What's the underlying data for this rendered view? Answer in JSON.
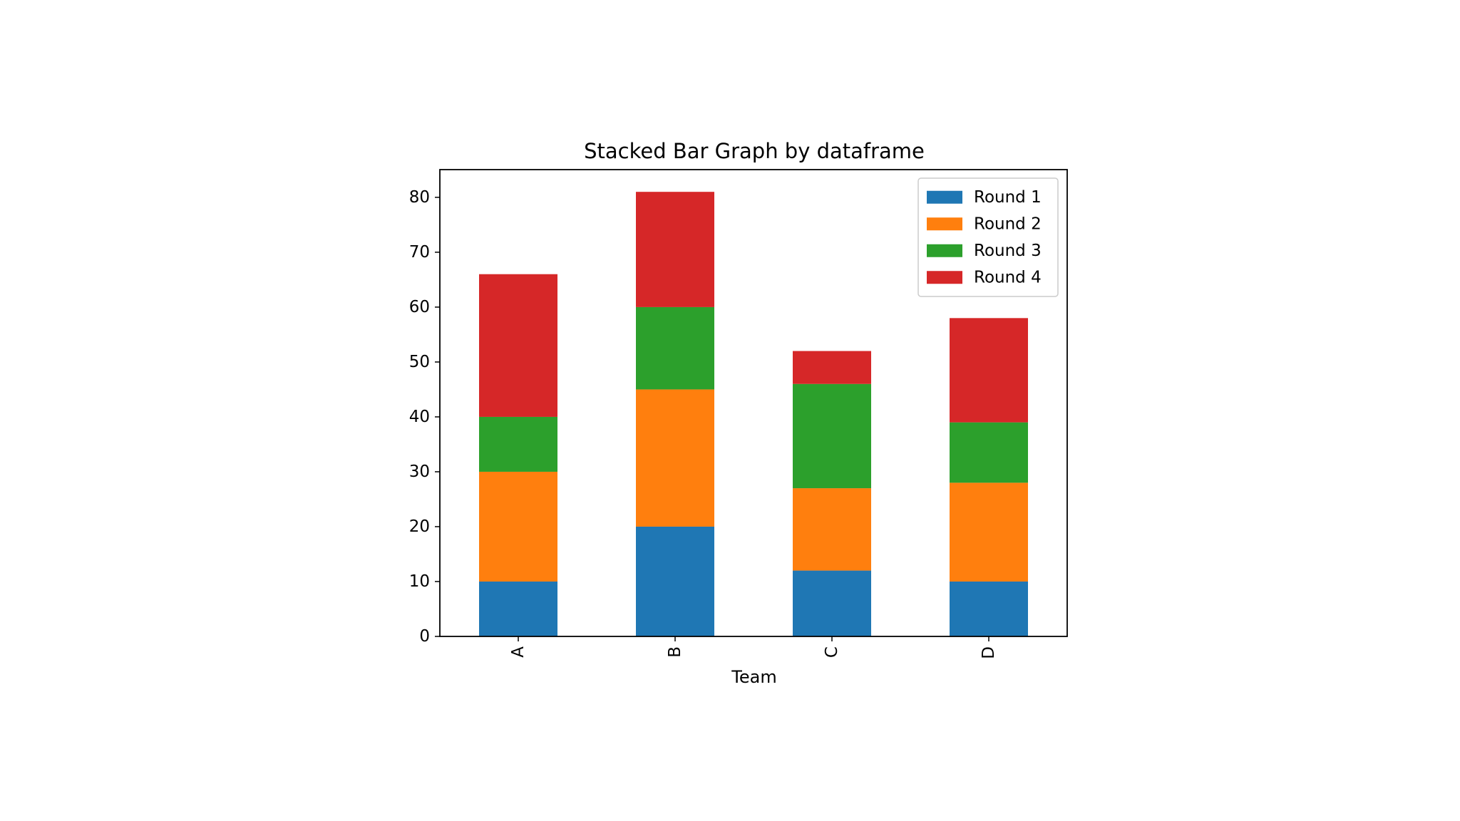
{
  "chart_data": {
    "type": "bar",
    "stacked": true,
    "title": "Stacked Bar Graph by dataframe",
    "xlabel": "Team",
    "ylabel": "",
    "categories": [
      "A",
      "B",
      "C",
      "D"
    ],
    "series": [
      {
        "name": "Round 1",
        "color": "#1f77b4",
        "values": [
          10,
          20,
          12,
          10
        ]
      },
      {
        "name": "Round 2",
        "color": "#ff7f0e",
        "values": [
          20,
          25,
          15,
          18
        ]
      },
      {
        "name": "Round 3",
        "color": "#2ca02c",
        "values": [
          10,
          15,
          19,
          11
        ]
      },
      {
        "name": "Round 4",
        "color": "#d62728",
        "values": [
          26,
          21,
          6,
          19
        ]
      }
    ],
    "ylim": [
      0,
      85.05
    ],
    "yticks": [
      0,
      10,
      20,
      30,
      40,
      50,
      60,
      70,
      80
    ],
    "ytick_labels": [
      "0",
      "10",
      "20",
      "30",
      "40",
      "50",
      "60",
      "70",
      "80"
    ],
    "xtick_rotation": 90,
    "grid": false,
    "legend_position": "top-right"
  }
}
